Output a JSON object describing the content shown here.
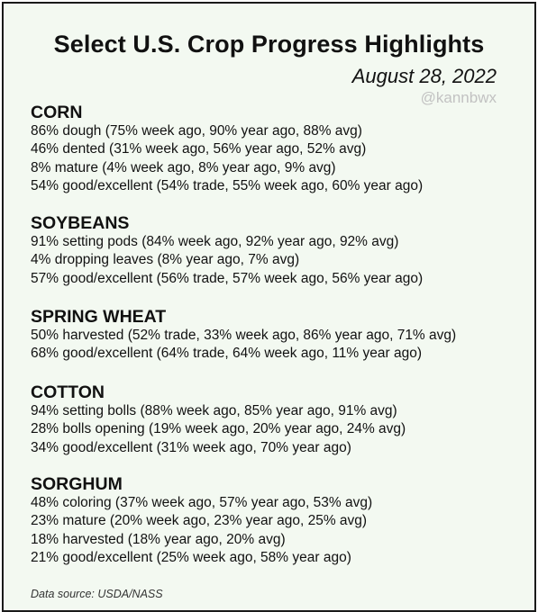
{
  "header": {
    "title": "Select U.S. Crop Progress Highlights",
    "date": "August 28, 2022",
    "handle": "@kannbwx"
  },
  "sections": [
    {
      "name": "CORN",
      "lines": [
        "86% dough (75% week ago, 90% year ago, 88% avg)",
        "46% dented (31% week ago, 56% year ago, 52% avg)",
        "8% mature (4% week ago, 8% year ago, 9% avg)",
        "54% good/excellent (54% trade, 55% week ago, 60% year ago)"
      ]
    },
    {
      "name": "SOYBEANS",
      "lines": [
        "91% setting pods (84% week ago, 92% year ago, 92% avg)",
        "4% dropping leaves (8% year ago, 7% avg)",
        "57% good/excellent (56% trade, 57% week ago, 56% year ago)"
      ]
    },
    {
      "name": "SPRING WHEAT",
      "lines": [
        "50% harvested (52% trade, 33% week ago, 86% year ago, 71% avg)",
        "68% good/excellent (64% trade, 64% week ago, 11% year ago)"
      ]
    },
    {
      "name": "COTTON",
      "lines": [
        "94% setting bolls (88% week ago, 85% year ago, 91% avg)",
        "28% bolls opening (19% week ago, 20% year ago, 24% avg)",
        "34% good/excellent (31% week ago, 70% year ago)"
      ]
    },
    {
      "name": "SORGHUM",
      "lines": [
        "48% coloring (37% week ago, 57% year ago, 53% avg)",
        "23% mature (20% week ago, 23% year ago, 25% avg)",
        "18% harvested (18% year ago, 20% avg)",
        "21% good/excellent (25% week ago, 58% year ago)"
      ]
    }
  ],
  "footer": {
    "source": "Data source: USDA/NASS"
  }
}
